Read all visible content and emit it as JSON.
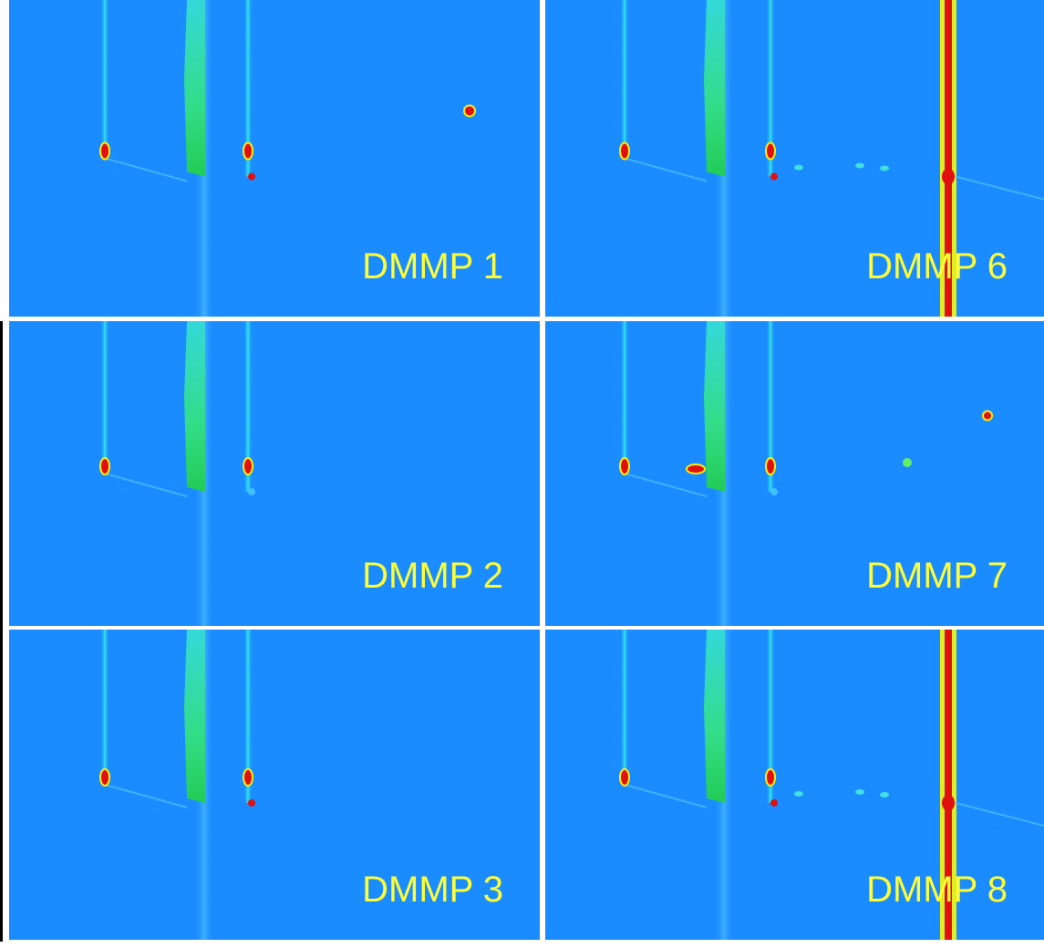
{
  "panels": [
    {
      "label": "DMMP 1"
    },
    {
      "label": "DMMP 6"
    },
    {
      "label": "DMMP 2"
    },
    {
      "label": "DMMP 7"
    },
    {
      "label": "DMMP 3"
    },
    {
      "label": "DMMP 8"
    }
  ]
}
